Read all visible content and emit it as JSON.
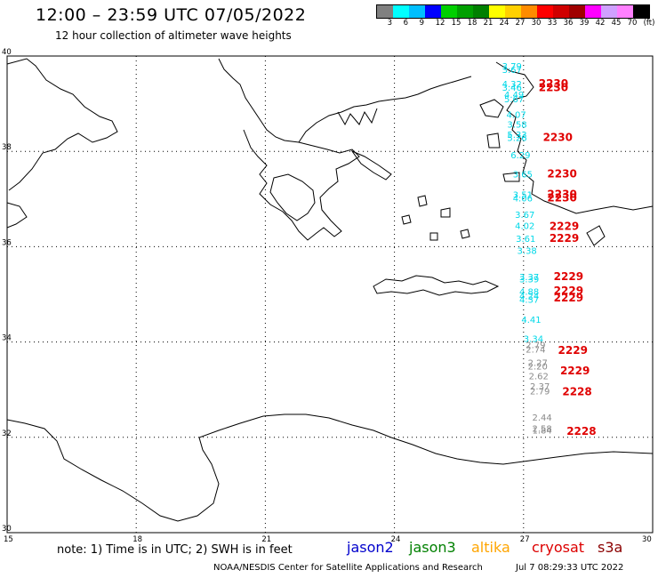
{
  "header": {
    "title": "12:00 – 23:59 UTC 07/05/2022",
    "subtitle": "12 hour collection of altimeter wave heights"
  },
  "color_scale": {
    "colors": [
      "#808080",
      "#00ffff",
      "#00bfff",
      "#0000ff",
      "#00d000",
      "#00a000",
      "#008000",
      "#ffff00",
      "#ffd000",
      "#ff8c00",
      "#ff0000",
      "#d00000",
      "#a00000",
      "#ff00ff",
      "#d0a0ff",
      "#ff80ff",
      "#000000"
    ],
    "labels": [
      "3",
      "6",
      "9",
      "12",
      "15",
      "18",
      "21",
      "24",
      "27",
      "30",
      "33",
      "36",
      "39",
      "42",
      "45",
      "70",
      "(ft)"
    ]
  },
  "axes": {
    "lat_labels": [
      "40",
      "38",
      "36",
      "34",
      "32",
      "30"
    ],
    "lon_labels": [
      "15",
      "18",
      "21",
      "24",
      "27",
      "30"
    ],
    "lat_values": [
      40,
      38,
      36,
      34,
      32,
      30
    ],
    "lon_values": [
      15,
      18,
      21,
      24,
      27,
      30
    ],
    "lon_range": [
      15,
      30
    ],
    "lat_range": [
      30,
      40
    ]
  },
  "cyan_readings": [
    {
      "v": "3.79",
      "lon": 26.5,
      "lat": 39.72
    },
    {
      "v": "3.67",
      "lon": 26.5,
      "lat": 39.65
    },
    {
      "v": "4.32",
      "lon": 26.5,
      "lat": 39.35
    },
    {
      "v": "3.46",
      "lon": 26.5,
      "lat": 39.27
    },
    {
      "v": "4.49",
      "lon": 26.55,
      "lat": 39.12
    },
    {
      "v": "5.67",
      "lon": 26.55,
      "lat": 39.03
    },
    {
      "v": "4.07",
      "lon": 26.6,
      "lat": 38.7
    },
    {
      "v": "3.58",
      "lon": 26.62,
      "lat": 38.5
    },
    {
      "v": "5.33",
      "lon": 26.62,
      "lat": 38.28
    },
    {
      "v": "5.26",
      "lon": 26.62,
      "lat": 38.22
    },
    {
      "v": "6.29",
      "lon": 26.7,
      "lat": 37.85
    },
    {
      "v": "3.65",
      "lon": 26.75,
      "lat": 37.45
    },
    {
      "v": "3.51",
      "lon": 26.75,
      "lat": 37.02
    },
    {
      "v": "4.06",
      "lon": 26.75,
      "lat": 36.95
    },
    {
      "v": "3.67",
      "lon": 26.8,
      "lat": 36.6
    },
    {
      "v": "4.02",
      "lon": 26.8,
      "lat": 36.37
    },
    {
      "v": "3.61",
      "lon": 26.82,
      "lat": 36.1
    },
    {
      "v": "3.38",
      "lon": 26.85,
      "lat": 35.85
    },
    {
      "v": "3.37",
      "lon": 26.9,
      "lat": 35.3
    },
    {
      "v": "3.39",
      "lon": 26.9,
      "lat": 35.25
    },
    {
      "v": "4.88",
      "lon": 26.9,
      "lat": 34.99
    },
    {
      "v": "4.24",
      "lon": 26.9,
      "lat": 34.9
    },
    {
      "v": "4.37",
      "lon": 26.9,
      "lat": 34.82
    },
    {
      "v": "4.41",
      "lon": 26.95,
      "lat": 34.4
    },
    {
      "v": "3.34",
      "lon": 27.0,
      "lat": 34.0
    }
  ],
  "gray_readings": [
    {
      "v": "2.79",
      "lon": 27.05,
      "lat": 33.87
    },
    {
      "v": "2.74",
      "lon": 27.05,
      "lat": 33.78
    },
    {
      "v": "2.27",
      "lon": 27.1,
      "lat": 33.5
    },
    {
      "v": "2.20",
      "lon": 27.1,
      "lat": 33.42
    },
    {
      "v": "2.62",
      "lon": 27.12,
      "lat": 33.22
    },
    {
      "v": "2.37",
      "lon": 27.15,
      "lat": 33.0
    },
    {
      "v": "2.79",
      "lon": 27.15,
      "lat": 32.9
    },
    {
      "v": "2.44",
      "lon": 27.2,
      "lat": 32.35
    },
    {
      "v": "2.58",
      "lon": 27.2,
      "lat": 32.12
    },
    {
      "v": "1.84",
      "lon": 27.2,
      "lat": 32.08
    }
  ],
  "red_times": [
    {
      "v": "2230",
      "lon": 27.35,
      "lat": 39.35
    },
    {
      "v": "2230",
      "lon": 27.35,
      "lat": 39.26
    },
    {
      "v": "2230",
      "lon": 27.45,
      "lat": 38.22
    },
    {
      "v": "2230",
      "lon": 27.55,
      "lat": 37.45
    },
    {
      "v": "2230",
      "lon": 27.55,
      "lat": 37.02
    },
    {
      "v": "2230",
      "lon": 27.55,
      "lat": 36.95
    },
    {
      "v": "2229",
      "lon": 27.6,
      "lat": 36.35
    },
    {
      "v": "2229",
      "lon": 27.6,
      "lat": 36.1
    },
    {
      "v": "2229",
      "lon": 27.7,
      "lat": 35.3
    },
    {
      "v": "2229",
      "lon": 27.7,
      "lat": 35.0
    },
    {
      "v": "2229",
      "lon": 27.7,
      "lat": 34.85
    },
    {
      "v": "2229",
      "lon": 27.8,
      "lat": 33.75
    },
    {
      "v": "2229",
      "lon": 27.85,
      "lat": 33.32
    },
    {
      "v": "2228",
      "lon": 27.9,
      "lat": 32.88
    },
    {
      "v": "2228",
      "lon": 28.0,
      "lat": 32.05
    }
  ],
  "footer": {
    "note": "note:  1) Time is in UTC;  2) SWH is in feet",
    "satellites": [
      {
        "name": "jason2",
        "color": "#0000cc"
      },
      {
        "name": "jason3",
        "color": "#008000"
      },
      {
        "name": "altika",
        "color": "#ffa500"
      },
      {
        "name": "cryosat",
        "color": "#dd0000"
      },
      {
        "name": "s3a",
        "color": "#8b0000"
      }
    ],
    "credit": "NOAA/NESDIS Center for Satellite Applications and Research",
    "timestamp": "Jul  7 08:29:33 UTC 2022"
  }
}
